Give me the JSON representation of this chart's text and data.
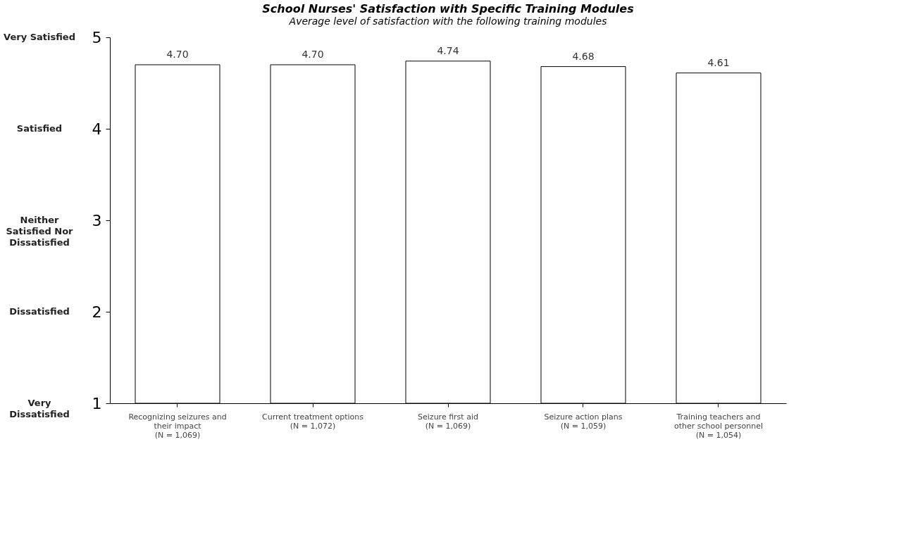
{
  "chart_data": {
    "type": "bar",
    "title": "School Nurses' Satisfaction with Specific Training Modules",
    "subtitle": "Average level of satisfaction with the following training modules",
    "categories": [
      "Recognizing seizures and their impact (N = 1,069)",
      "Current treatment options (N = 1,072)",
      "Seizure first aid (N = 1,069)",
      "Seizure action plans (N = 1,059)",
      "Training teachers and other school personnel (N = 1,054)"
    ],
    "values": [
      4.7,
      4.7,
      4.74,
      4.68,
      4.61
    ],
    "value_labels": [
      "4.70",
      "4.70",
      "4.74",
      "4.68",
      "4.61"
    ],
    "color": "#ffffff",
    "ylim": [
      1,
      5
    ],
    "yticks": [
      1,
      2,
      3,
      4,
      5
    ],
    "annotations": [
      "Very Dissatisfied",
      "Dissatisfied",
      "Neither Satisfied Nor Dissatisfied",
      "Satisfied",
      "Very Satisfied"
    ],
    "grid": false
  }
}
